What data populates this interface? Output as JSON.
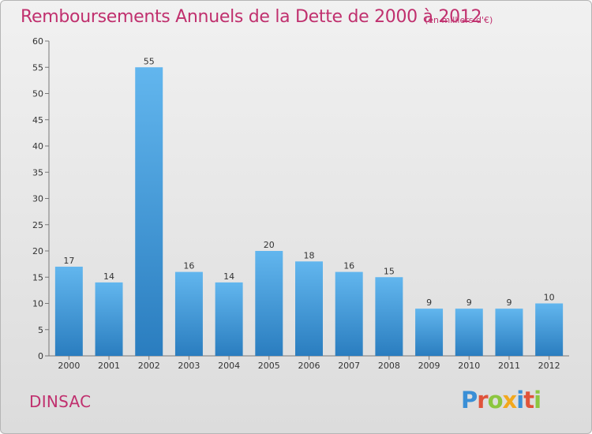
{
  "title": "Remboursements Annuels de la Dette de 2000 à 2012",
  "subtitle": "(en milliers d'€)",
  "town": "DINSAC",
  "logo": {
    "letters": [
      "P",
      "r",
      "o",
      "x",
      "i",
      "t",
      "i"
    ],
    "colors": [
      "#3a8fd6",
      "#e0533a",
      "#8cc63f",
      "#f2a81d",
      "#3a8fd6",
      "#e0533a",
      "#8cc63f"
    ]
  },
  "colors": {
    "bar_top": "#62b6ee",
    "bar_bottom": "#2a7dbf",
    "title": "#c0306e"
  },
  "chart_data": {
    "type": "bar",
    "title": "Remboursements Annuels de la Dette de 2000 à 2012",
    "subtitle": "(en milliers d'€)",
    "xlabel": "",
    "ylabel": "",
    "categories": [
      "2000",
      "2001",
      "2002",
      "2003",
      "2004",
      "2005",
      "2006",
      "2007",
      "2008",
      "2009",
      "2010",
      "2011",
      "2012"
    ],
    "values": [
      17,
      14,
      55,
      16,
      14,
      20,
      18,
      16,
      15,
      9,
      9,
      9,
      10
    ],
    "ylim": [
      0,
      60
    ],
    "yticks": [
      0,
      5,
      10,
      15,
      20,
      25,
      30,
      35,
      40,
      45,
      50,
      55,
      60
    ],
    "grid": false,
    "legend": "none"
  }
}
